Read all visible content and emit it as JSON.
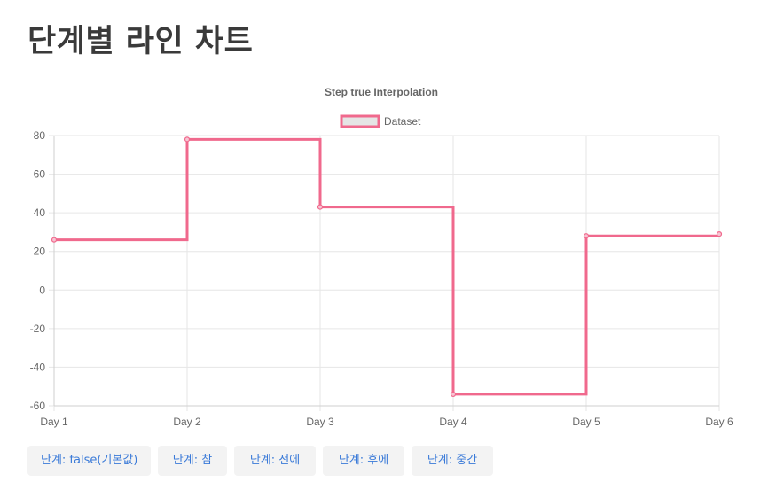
{
  "page": {
    "title": "단계별 라인 차트"
  },
  "buttons": [
    {
      "label": "단계: false(기본값)"
    },
    {
      "label": "단계: 참"
    },
    {
      "label": "단계: 전에"
    },
    {
      "label": "단계: 후에"
    },
    {
      "label": "단계: 중간"
    }
  ],
  "colors": {
    "line": "#f0698d",
    "legend_fill": "#e5e5e5",
    "grid": "#e6e6e6",
    "title_text": "#3a3a3a",
    "button_text": "#3a7ad8",
    "button_bg": "#f3f3f3"
  },
  "chart_data": {
    "type": "line",
    "title": "Step true Interpolation",
    "stepped": "before",
    "categories": [
      "Day 1",
      "Day 2",
      "Day 3",
      "Day 4",
      "Day 5",
      "Day 6"
    ],
    "series": [
      {
        "name": "Dataset",
        "values": [
          26,
          78,
          43,
          -54,
          28,
          29
        ]
      }
    ],
    "ylim": [
      -60,
      80
    ],
    "yticks": [
      80,
      60,
      40,
      20,
      0,
      -20,
      -40,
      -60
    ],
    "grid": true,
    "legend": "top",
    "xlabel": "",
    "ylabel": ""
  }
}
